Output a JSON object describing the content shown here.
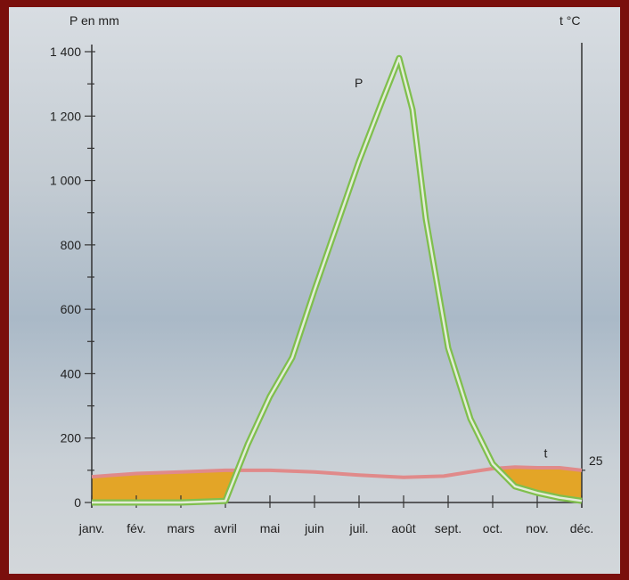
{
  "chart_data": {
    "type": "line",
    "y_left_label": "P en mm",
    "y_right_label": "t °C",
    "categories": [
      "janv.",
      "fév.",
      "mars",
      "avril",
      "mai",
      "juin",
      "juil.",
      "août",
      "sept.",
      "oct.",
      "nov.",
      "déc."
    ],
    "y_left_ticks": [
      "0",
      "200",
      "400",
      "600",
      "800",
      "1 000",
      "1 200",
      "1 400"
    ],
    "y_left_range": [
      0,
      1400
    ],
    "y_right_ticks": [
      "25"
    ],
    "series": [
      {
        "name": "P",
        "color": "#7fbf4d",
        "x": [
          0,
          1,
          2,
          3,
          3.5,
          4,
          4.5,
          5,
          5.5,
          6,
          6.5,
          6.9,
          7.2,
          7.5,
          8,
          8.5,
          9,
          9.5,
          10,
          10.5,
          11
        ],
        "values": [
          0,
          0,
          0,
          5,
          180,
          330,
          450,
          660,
          860,
          1060,
          1240,
          1380,
          1220,
          880,
          480,
          260,
          120,
          50,
          30,
          15,
          5
        ]
      },
      {
        "name": "t",
        "color": "#e08a8a",
        "x": [
          0,
          1,
          2,
          3,
          4,
          5,
          6,
          7,
          7.9,
          8.5,
          9,
          9.5,
          10,
          10.5,
          11
        ],
        "values": [
          80,
          90,
          95,
          100,
          100,
          95,
          85,
          78,
          82,
          95,
          105,
          110,
          108,
          108,
          100
        ]
      }
    ],
    "fill_color": "#e4a21d",
    "grid": false
  }
}
